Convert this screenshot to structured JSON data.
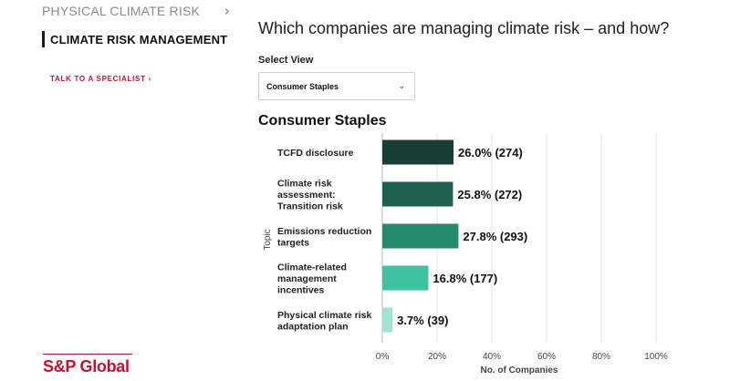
{
  "sidebar": {
    "physical_climate_risk": "PHYSICAL CLIMATE RISK",
    "chevron": "›",
    "climate_risk_management": "CLIMATE RISK MANAGEMENT",
    "talk_to_specialist": "TALK TO A SPECIALIST ›",
    "logo_text": "S&P Global"
  },
  "main": {
    "question": "Which companies are managing climate risk – and how?",
    "select_label": "Select View",
    "select_value": "Consumer Staples",
    "caret": "⌄"
  },
  "chart_data": {
    "type": "bar",
    "orientation": "horizontal",
    "title": "Consumer Staples",
    "xlabel": "No. of Companies",
    "ylabel": "Topic",
    "xlim": [
      0,
      100
    ],
    "xticks": [
      "0%",
      "20%",
      "40%",
      "60%",
      "80%",
      "100%"
    ],
    "grid": "vertical",
    "categories": [
      [
        "TCFD disclosure"
      ],
      [
        "Climate risk",
        "assessment:",
        "Transition risk"
      ],
      [
        "Emissions reduction",
        "targets"
      ],
      [
        "Climate-related",
        "management",
        "incentives"
      ],
      [
        "Physical climate risk",
        "adaptation plan"
      ]
    ],
    "values": [
      26.0,
      25.8,
      27.8,
      16.8,
      3.7
    ],
    "data_labels": [
      "26.0% (274)",
      "25.8% (272)",
      "27.8% (293)",
      "16.8% (177)",
      "3.7% (39)"
    ],
    "colors": [
      "#173f36",
      "#1e6050",
      "#248a6e",
      "#3ec3a2",
      "#9ee4d1"
    ]
  }
}
